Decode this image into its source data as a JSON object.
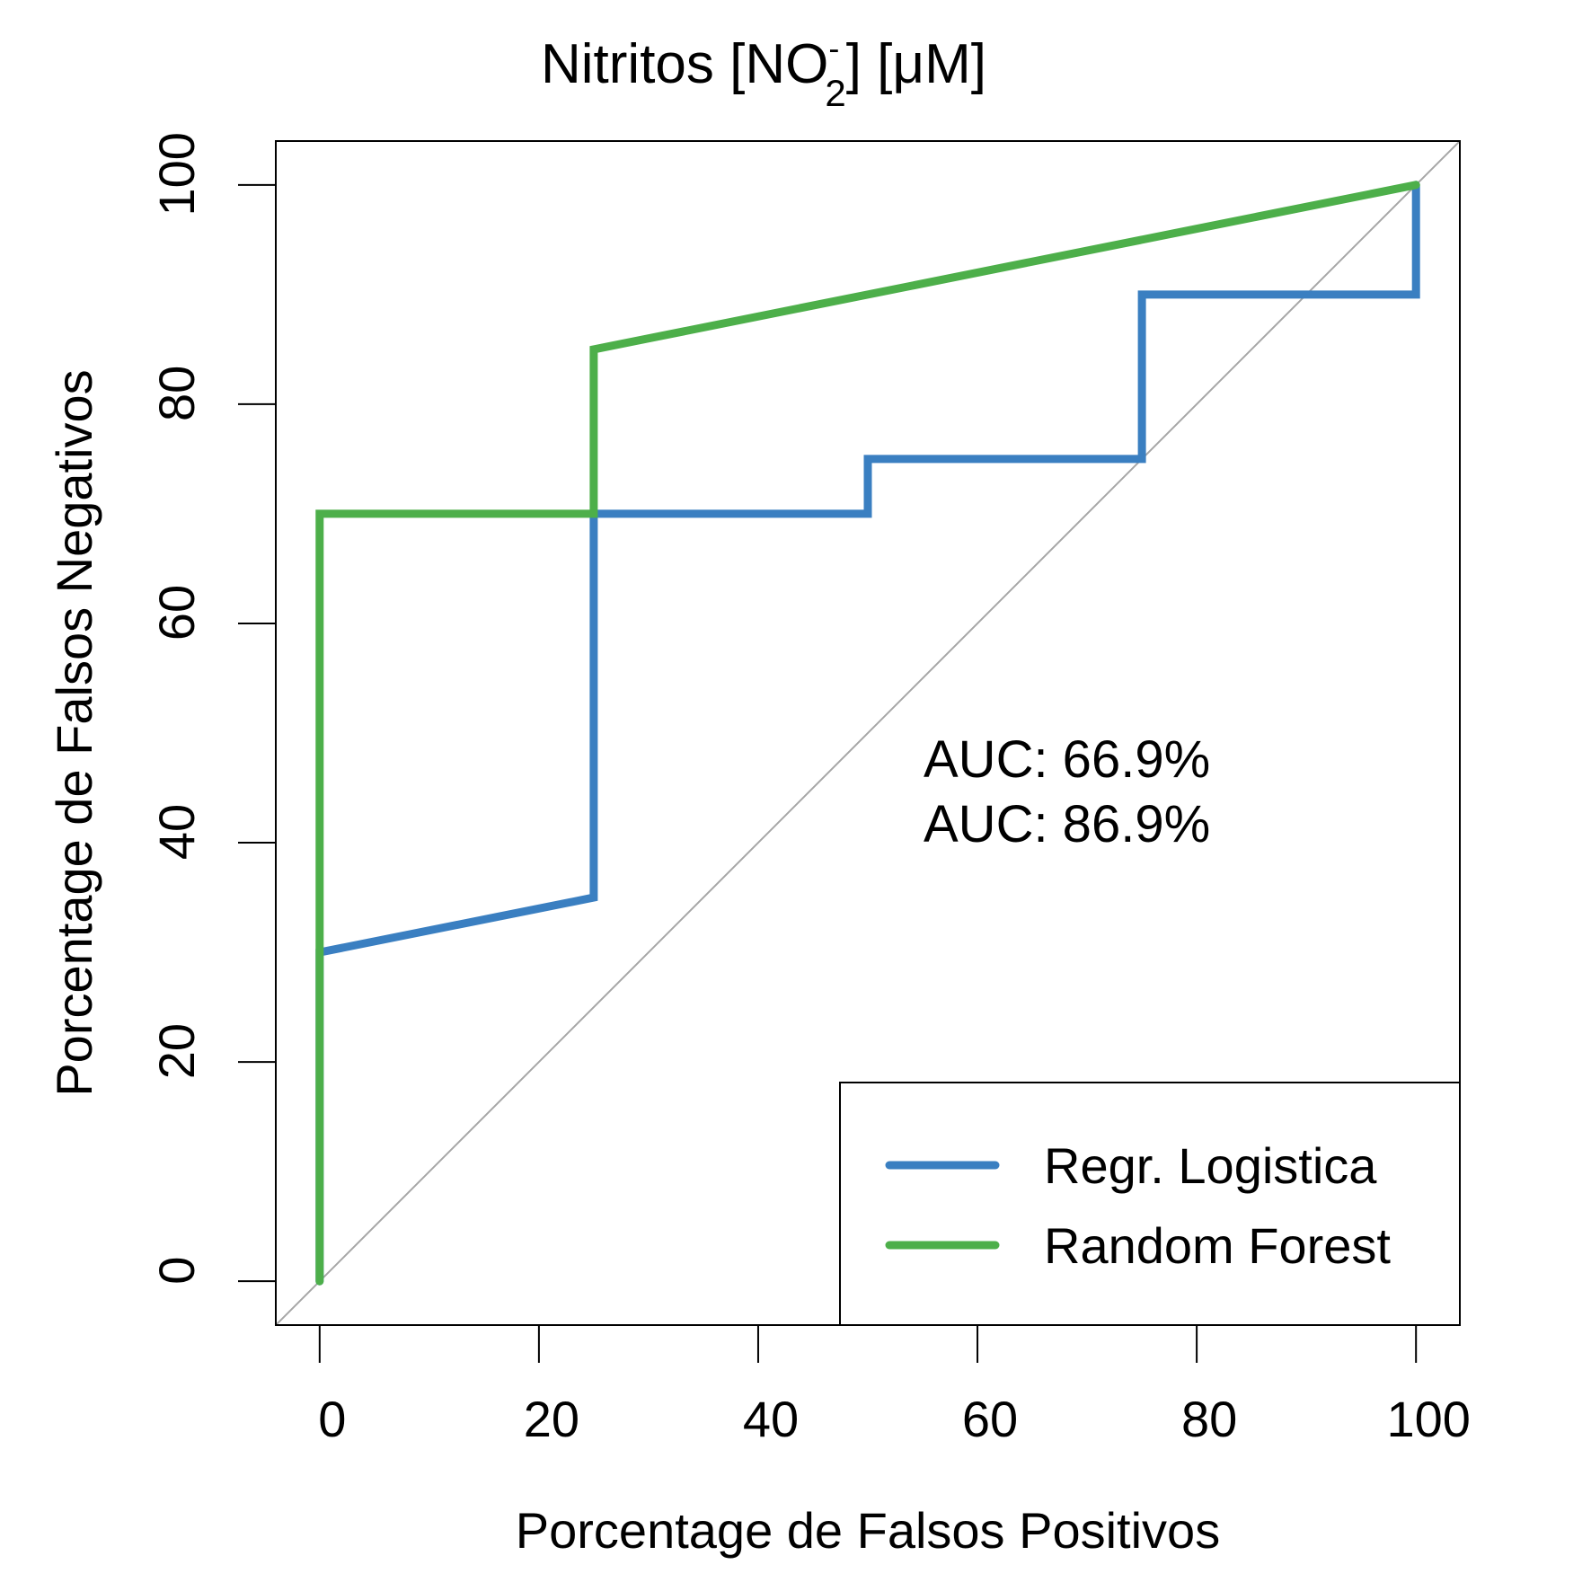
{
  "chart_data": {
    "type": "line",
    "title": {
      "prefix": "Nitritos [NO",
      "superscript": "-",
      "subscript": "2",
      "suffix": "] [μM]"
    },
    "xlabel": "Porcentage de Falsos Positivos",
    "ylabel": "Porcentage de Falsos Negativos",
    "xlim": [
      -4,
      104
    ],
    "ylim": [
      -4,
      104
    ],
    "xticks": [
      0,
      20,
      40,
      60,
      80,
      100
    ],
    "yticks": [
      0,
      20,
      40,
      60,
      80,
      100
    ],
    "xtick_labels": [
      "0",
      "20",
      "40",
      "60",
      "80",
      "100"
    ],
    "ytick_labels": [
      "0",
      "20",
      "40",
      "60",
      "80",
      "100"
    ],
    "grid": false,
    "reference_line": {
      "x": [
        0,
        100
      ],
      "y": [
        0,
        100
      ],
      "color": "#a6a6a6"
    },
    "series": [
      {
        "name": "Regr. Logistica",
        "color": "#3a7fc1",
        "x": [
          0,
          0,
          25,
          25,
          50,
          50,
          75,
          75,
          100,
          100
        ],
        "y": [
          0,
          30,
          35,
          70,
          70,
          75,
          75,
          90,
          90,
          100
        ]
      },
      {
        "name": "Random Forest",
        "color": "#4daf4a",
        "x": [
          0,
          0,
          25,
          25,
          100
        ],
        "y": [
          0,
          70,
          70,
          85,
          100
        ]
      }
    ],
    "annotations": [
      {
        "text": "AUC: 66.9%",
        "color": "#3a7fc1"
      },
      {
        "text": "AUC: 86.9%",
        "color": "#4daf4a"
      }
    ],
    "legend_position": "bottom-right"
  }
}
